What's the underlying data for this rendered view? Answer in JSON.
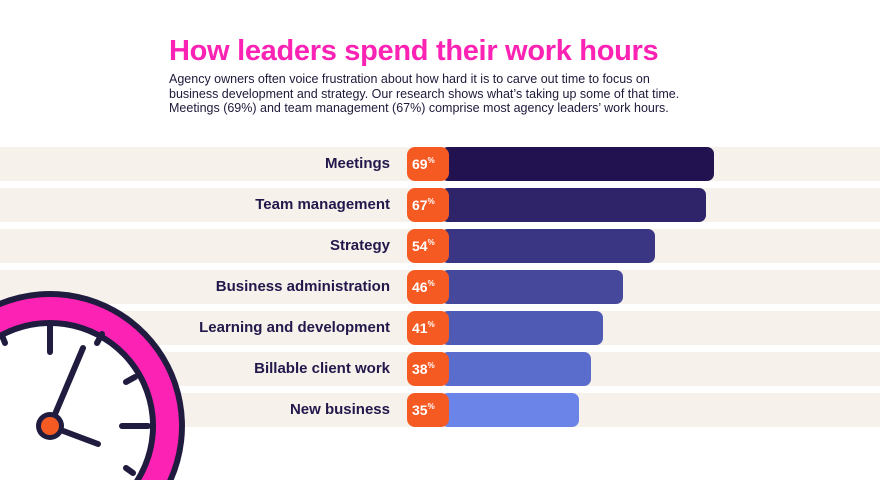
{
  "title": "How leaders spend their work hours",
  "subtitle_lines": [
    "Agency owners often voice frustration about how hard it is to carve out time to focus on",
    "business development and strategy. Our research shows what’s taking up some of that time.",
    "Meetings (69%) and team management (67%) comprise most agency leaders’ work hours."
  ],
  "chart_data": {
    "type": "bar",
    "orientation": "horizontal",
    "title": "How leaders spend their work hours",
    "categories": [
      "Meetings",
      "Team management",
      "Strategy",
      "Business administration",
      "Learning and development",
      "Billable client work",
      "New business"
    ],
    "values": [
      69,
      67,
      54,
      46,
      41,
      38,
      35
    ],
    "unit": "%",
    "xlim": [
      0,
      69
    ],
    "colors": [
      "#22124f",
      "#2f246a",
      "#3b3683",
      "#45489b",
      "#4f5ab5",
      "#5a6ccc",
      "#6a84e8"
    ]
  },
  "colors": {
    "accent": "#fb22b4",
    "badge": "#f65a23",
    "row_bg": "#f6f1ea",
    "dark": "#1f1c3f"
  }
}
